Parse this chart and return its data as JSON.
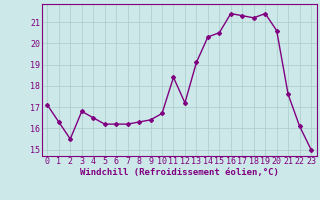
{
  "x": [
    0,
    1,
    2,
    3,
    4,
    5,
    6,
    7,
    8,
    9,
    10,
    11,
    12,
    13,
    14,
    15,
    16,
    17,
    18,
    19,
    20,
    21,
    22,
    23
  ],
  "y": [
    17.1,
    16.3,
    15.5,
    16.8,
    16.5,
    16.2,
    16.2,
    16.2,
    16.3,
    16.4,
    16.7,
    18.4,
    17.2,
    19.1,
    20.3,
    20.5,
    21.4,
    21.3,
    21.2,
    21.4,
    20.6,
    17.6,
    16.1,
    15.0
  ],
  "line_color": "#800080",
  "marker": "D",
  "marker_size": 2,
  "bg_color": "#cce8e8",
  "grid_color": "#aacccc",
  "ylim": [
    14.7,
    21.85
  ],
  "yticks": [
    15,
    16,
    17,
    18,
    19,
    20,
    21
  ],
  "xlim": [
    -0.5,
    23.5
  ],
  "xlabel": "Windchill (Refroidissement éolien,°C)",
  "xlabel_fontsize": 6.5,
  "tick_fontsize": 6,
  "line_width": 1.0
}
